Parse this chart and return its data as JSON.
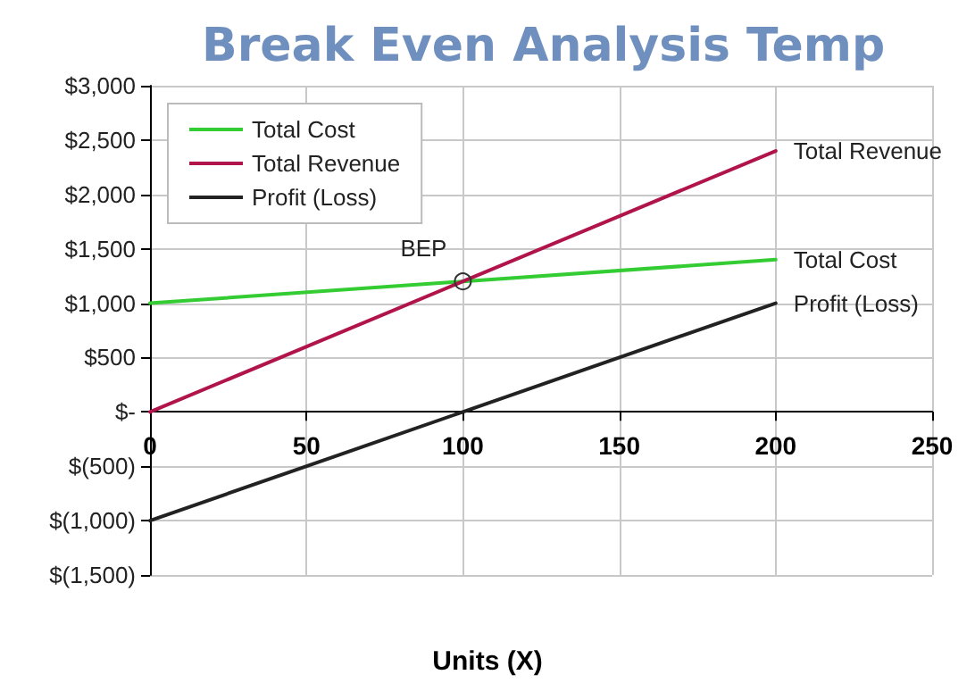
{
  "chart_data": {
    "type": "line",
    "title": "Break Even Analysis Temp",
    "xlabel": "Units (X)",
    "x": [
      0,
      100,
      200
    ],
    "series": [
      {
        "name": "Total Cost",
        "color": "#33cc33",
        "values": [
          1000,
          1200,
          1400
        ]
      },
      {
        "name": "Total Revenue",
        "color": "#b0144a",
        "values": [
          0,
          1200,
          2400
        ]
      },
      {
        "name": "Profit (Loss)",
        "color": "#222222",
        "values": [
          -1000,
          0,
          1000
        ]
      }
    ],
    "xlim": [
      0,
      250
    ],
    "xticks": [
      0,
      50,
      100,
      150,
      200,
      250
    ],
    "ylim": [
      -1500,
      3000
    ],
    "yticks": [
      {
        "value": -1500,
        "label": "$(1,500)"
      },
      {
        "value": -1000,
        "label": "$(1,000)"
      },
      {
        "value": -500,
        "label": "$(500)"
      },
      {
        "value": 0,
        "label": "$-"
      },
      {
        "value": 500,
        "label": "$500"
      },
      {
        "value": 1000,
        "label": "$1,000"
      },
      {
        "value": 1500,
        "label": "$1,500"
      },
      {
        "value": 2000,
        "label": "$2,000"
      },
      {
        "value": 2500,
        "label": "$2,500"
      },
      {
        "value": 3000,
        "label": "$3,000"
      }
    ],
    "annotations": [
      {
        "text": "BEP",
        "x": 100,
        "y": 1200
      }
    ],
    "grid": true,
    "legend": "top left",
    "marker": "none",
    "line_style": "solid"
  }
}
